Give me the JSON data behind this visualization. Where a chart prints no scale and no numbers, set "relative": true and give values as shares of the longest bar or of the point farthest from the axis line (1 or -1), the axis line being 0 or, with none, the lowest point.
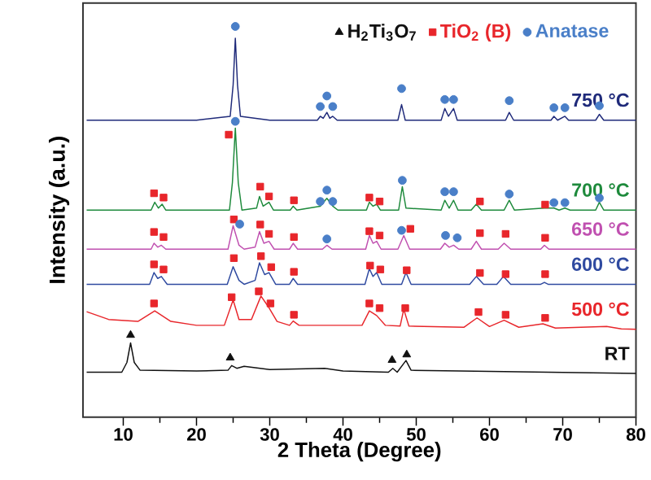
{
  "chart_data": {
    "type": "line",
    "relative": true,
    "xlabel": "2 Theta (Degree)",
    "ylabel": "Intensity (a.u.)",
    "xlim": [
      4.5,
      80
    ],
    "xticks": [
      10,
      20,
      30,
      40,
      50,
      60,
      70,
      80
    ],
    "grid": false,
    "legend": "top right",
    "series": [
      {
        "name": "750 °C",
        "color": "#1f2a7a",
        "x": [
          5,
          20,
          24.6,
          25.0,
          25.3,
          25.6,
          26,
          30,
          36.5,
          36.9,
          37.3,
          37.8,
          38.2,
          38.6,
          39.2,
          47.5,
          48.0,
          48.5,
          53.4,
          53.9,
          54.4,
          55.1,
          55.6,
          62.2,
          62.7,
          63.3,
          68.4,
          68.8,
          69.3,
          70.3,
          70.8,
          74.5,
          75.0,
          75.6,
          80
        ],
        "values": [
          0.76,
          0.76,
          0.77,
          0.85,
          0.97,
          0.85,
          0.77,
          0.76,
          0.76,
          0.77,
          0.765,
          0.78,
          0.765,
          0.77,
          0.76,
          0.76,
          0.8,
          0.76,
          0.76,
          0.79,
          0.77,
          0.79,
          0.76,
          0.76,
          0.78,
          0.76,
          0.76,
          0.77,
          0.76,
          0.77,
          0.76,
          0.76,
          0.775,
          0.76,
          0.76
        ]
      },
      {
        "name": "700 °C",
        "color": "#1e8a3c",
        "x": [
          5,
          13.8,
          14.3,
          14.8,
          15.3,
          15.8,
          24.5,
          24.9,
          25.3,
          25.7,
          26.2,
          28.2,
          28.6,
          29.1,
          29.9,
          30.5,
          32.8,
          33.2,
          33.7,
          36.9,
          37.8,
          38.6,
          39.3,
          43.2,
          43.6,
          44.1,
          44.6,
          45.1,
          47.6,
          48.1,
          48.6,
          53.4,
          53.9,
          54.5,
          55.1,
          55.7,
          57.5,
          58.2,
          58.9,
          62.0,
          62.7,
          63.4,
          67.5,
          68.8,
          69.5,
          70.3,
          71,
          74.5,
          75.0,
          75.6,
          80
        ],
        "values": [
          0.53,
          0.53,
          0.55,
          0.535,
          0.545,
          0.53,
          0.53,
          0.6,
          0.74,
          0.6,
          0.53,
          0.535,
          0.565,
          0.54,
          0.55,
          0.53,
          0.53,
          0.54,
          0.53,
          0.54,
          0.56,
          0.54,
          0.53,
          0.53,
          0.55,
          0.54,
          0.545,
          0.53,
          0.53,
          0.59,
          0.535,
          0.53,
          0.555,
          0.535,
          0.555,
          0.53,
          0.53,
          0.545,
          0.53,
          0.53,
          0.555,
          0.53,
          0.535,
          0.535,
          0.53,
          0.535,
          0.53,
          0.53,
          0.55,
          0.53,
          0.53
        ]
      },
      {
        "name": "650 °C",
        "color": "#c050b0",
        "x": [
          5,
          13.8,
          14.2,
          14.7,
          15.2,
          15.8,
          24.3,
          25.0,
          25.8,
          26.5,
          28.0,
          28.6,
          29.2,
          29.9,
          30.6,
          32.7,
          33.2,
          33.8,
          37.2,
          37.8,
          38.5,
          43.1,
          43.6,
          44.1,
          44.6,
          45.2,
          47.5,
          48.3,
          49.1,
          53.3,
          53.9,
          54.5,
          55.1,
          55.8,
          57.5,
          58.2,
          58.9,
          61.2,
          62.0,
          62.9,
          67.0,
          67.5,
          68.1,
          80
        ],
        "values": [
          0.43,
          0.43,
          0.445,
          0.435,
          0.44,
          0.43,
          0.43,
          0.49,
          0.44,
          0.43,
          0.435,
          0.475,
          0.445,
          0.45,
          0.43,
          0.43,
          0.445,
          0.43,
          0.43,
          0.44,
          0.43,
          0.43,
          0.465,
          0.445,
          0.45,
          0.43,
          0.43,
          0.465,
          0.43,
          0.43,
          0.445,
          0.435,
          0.44,
          0.43,
          0.43,
          0.45,
          0.43,
          0.43,
          0.445,
          0.43,
          0.43,
          0.44,
          0.43,
          0.43
        ]
      },
      {
        "name": "600 °C",
        "color": "#2f4aa0",
        "x": [
          5,
          13.6,
          14.2,
          14.7,
          15.2,
          16,
          24.2,
          25.0,
          25.8,
          26.5,
          28.0,
          28.6,
          29.3,
          29.9,
          30.8,
          32.7,
          33.2,
          33.8,
          43.0,
          43.6,
          44.1,
          44.6,
          45.3,
          48.0,
          48.6,
          49.3,
          57.3,
          58.2,
          59.2,
          61.0,
          61.9,
          62.9,
          67.0,
          67.5,
          68.0,
          80
        ],
        "values": [
          0.34,
          0.34,
          0.37,
          0.355,
          0.36,
          0.34,
          0.34,
          0.385,
          0.35,
          0.34,
          0.35,
          0.395,
          0.365,
          0.37,
          0.34,
          0.34,
          0.355,
          0.34,
          0.34,
          0.38,
          0.36,
          0.37,
          0.34,
          0.34,
          0.37,
          0.34,
          0.34,
          0.36,
          0.34,
          0.34,
          0.36,
          0.34,
          0.34,
          0.345,
          0.34,
          0.34
        ]
      },
      {
        "name": "500 °C",
        "color": "#e8262b",
        "x": [
          5,
          8,
          12,
          14.3,
          16.5,
          20,
          23.8,
          25.0,
          25.8,
          27.5,
          28.8,
          29.9,
          31,
          32.7,
          33.2,
          34,
          42.6,
          43.6,
          44.6,
          45.8,
          47.8,
          48.3,
          49,
          56.5,
          58.3,
          60,
          62,
          64,
          67.3,
          69,
          76,
          78,
          80
        ],
        "values": [
          0.27,
          0.25,
          0.245,
          0.272,
          0.245,
          0.235,
          0.235,
          0.3,
          0.25,
          0.25,
          0.31,
          0.28,
          0.245,
          0.235,
          0.246,
          0.235,
          0.235,
          0.272,
          0.26,
          0.235,
          0.233,
          0.276,
          0.233,
          0.23,
          0.254,
          0.232,
          0.248,
          0.23,
          0.239,
          0.228,
          0.232,
          0.226,
          0.225
        ]
      },
      {
        "name": "RT",
        "color": "#111111",
        "x": [
          5,
          9.8,
          10.5,
          11.0,
          11.5,
          12.3,
          20,
          24.3,
          24.8,
          25.5,
          26.5,
          30,
          37.5,
          40,
          46.2,
          46.8,
          47.4,
          48.6,
          49.3,
          56,
          80
        ],
        "values": [
          0.115,
          0.115,
          0.14,
          0.19,
          0.14,
          0.12,
          0.118,
          0.12,
          0.132,
          0.125,
          0.13,
          0.122,
          0.125,
          0.118,
          0.115,
          0.125,
          0.115,
          0.145,
          0.12,
          0.118,
          0.112
        ]
      },
      {
        "name": "H$_{2}$Ti$_{3}$O$_{7}$",
        "type": "scatter",
        "marker": "triangle",
        "color": "#111111",
        "x": [
          11.0,
          24.6,
          46.7,
          48.7
        ],
        "values": [
          0.21,
          0.152,
          0.146,
          0.16
        ]
      },
      {
        "name": "TiO$_{2}$ (B)",
        "type": "scatter",
        "marker": "square",
        "color": "#e8262b",
        "x": [
          24.4,
          14.2,
          15.5,
          28.7,
          29.9,
          33.3,
          43.6,
          45.0,
          58.7,
          67.6,
          14.2,
          15.5,
          25.1,
          28.7,
          29.9,
          33.3,
          43.6,
          45.0,
          49.2,
          58.7,
          62.2,
          67.6,
          14.2,
          15.5,
          25.1,
          28.8,
          30.2,
          33.3,
          43.7,
          45.1,
          48.7,
          58.7,
          62.2,
          67.6,
          14.2,
          24.8,
          28.5,
          30.1,
          33.3,
          43.6,
          45.0,
          48.5,
          58.5,
          62.2,
          67.6
        ],
        "values": [
          0.723,
          0.573,
          0.562,
          0.59,
          0.565,
          0.555,
          0.562,
          0.552,
          0.552,
          0.544,
          0.474,
          0.461,
          0.506,
          0.493,
          0.469,
          0.461,
          0.476,
          0.465,
          0.482,
          0.471,
          0.469,
          0.459,
          0.391,
          0.378,
          0.407,
          0.412,
          0.384,
          0.372,
          0.388,
          0.378,
          0.376,
          0.369,
          0.366,
          0.366,
          0.291,
          0.307,
          0.322,
          0.291,
          0.262,
          0.291,
          0.279,
          0.279,
          0.269,
          0.262,
          0.254
        ]
      },
      {
        "name": "Anatase",
        "type": "scatter",
        "marker": "circle",
        "color": "#4a7fc8",
        "x": [
          25.3,
          36.9,
          37.8,
          38.6,
          48.0,
          53.9,
          55.1,
          62.7,
          68.8,
          70.3,
          75.0,
          25.3,
          36.9,
          37.8,
          38.6,
          48.1,
          53.9,
          55.1,
          62.7,
          68.8,
          70.3,
          75.0,
          25.9,
          37.8,
          48.0,
          54.0,
          55.6
        ],
        "values": [
          1.0,
          0.795,
          0.822,
          0.795,
          0.841,
          0.813,
          0.813,
          0.81,
          0.792,
          0.792,
          0.797,
          0.757,
          0.552,
          0.581,
          0.552,
          0.606,
          0.577,
          0.577,
          0.571,
          0.549,
          0.549,
          0.561,
          0.494,
          0.456,
          0.478,
          0.465,
          0.459
        ]
      }
    ]
  }
}
